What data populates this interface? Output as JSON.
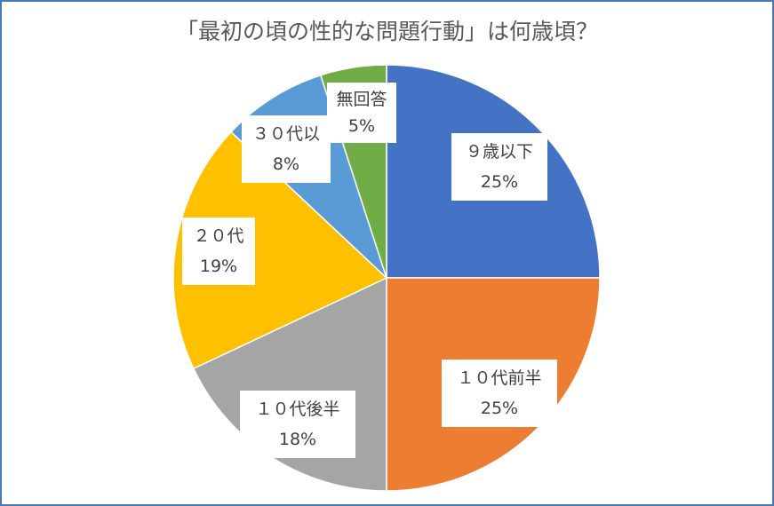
{
  "chart_data": {
    "type": "pie",
    "title": "「最初の頃の性的な問題行動」は何歳頃？",
    "categories": [
      "９歳以下",
      "１０代前半",
      "１０代後半",
      "２０代",
      "３０代以",
      "無回答"
    ],
    "values": [
      25,
      25,
      18,
      19,
      8,
      5
    ],
    "labels": [
      "25%",
      "25%",
      "18%",
      "19%",
      "8%",
      "5%"
    ],
    "colors": [
      "#4472C4",
      "#ED7D31",
      "#A5A5A5",
      "#FFC000",
      "#5B9BD5",
      "#70AD47"
    ],
    "start": "12 o'clock",
    "direction": "clockwise",
    "legend": "none"
  }
}
